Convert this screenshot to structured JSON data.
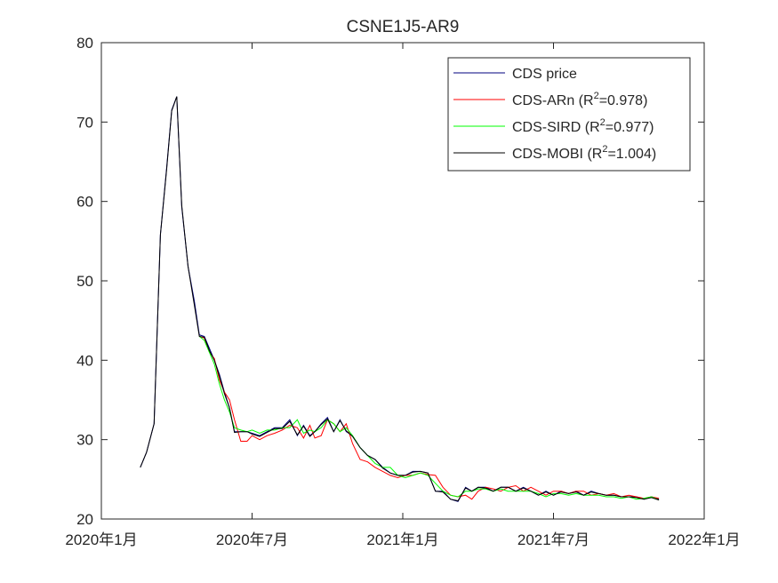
{
  "chart_data": {
    "type": "line",
    "title": "CSNE1J5-AR9",
    "xlabel": "",
    "ylabel": "",
    "ylim": [
      20,
      80
    ],
    "yticks": [
      20,
      30,
      40,
      50,
      60,
      70,
      80
    ],
    "xlim": [
      0,
      24
    ],
    "xticks": [
      {
        "value": 0,
        "label": "2020年1月"
      },
      {
        "value": 6,
        "label": "2020年7月"
      },
      {
        "value": 12,
        "label": "2021年1月"
      },
      {
        "value": 18,
        "label": "2021年7月"
      },
      {
        "value": 24,
        "label": "2022年1月"
      }
    ],
    "grid": false,
    "legend_position": "top-right",
    "series": [
      {
        "name": "CDS price",
        "color": "#00007f",
        "x": [
          1.55,
          1.8,
          2.1,
          2.35,
          2.6,
          2.8,
          3.0,
          3.2,
          3.45,
          3.7,
          3.9,
          4.1,
          4.3,
          4.5,
          4.7,
          4.9,
          5.1,
          5.3,
          5.55,
          5.8,
          6.0,
          6.3,
          6.6,
          6.9,
          7.2,
          7.5,
          7.8,
          8.05,
          8.3,
          8.5,
          8.75,
          9.0,
          9.25,
          9.5,
          9.75,
          10.0,
          10.3,
          10.6,
          10.9,
          11.2,
          11.5,
          11.8,
          12.1,
          12.4,
          12.7,
          13.0,
          13.3,
          13.6,
          13.9,
          14.2,
          14.5,
          14.75,
          15.0,
          15.3,
          15.6,
          15.9,
          16.2,
          16.5,
          16.8,
          17.1,
          17.4,
          17.7,
          18.0,
          18.3,
          18.6,
          18.9,
          19.2,
          19.5,
          19.8,
          20.1,
          20.4,
          20.7,
          21.0,
          21.3,
          21.6,
          21.9,
          22.2
        ],
        "y": [
          26.5,
          28.4,
          32.0,
          55.8,
          64.2,
          71.5,
          73.2,
          59.3,
          51.8,
          47.5,
          43.2,
          43.0,
          41.5,
          40.0,
          38.2,
          36.0,
          34.0,
          31.0,
          31.0,
          31.0,
          30.8,
          30.5,
          31.0,
          31.5,
          31.5,
          32.5,
          30.5,
          31.8,
          30.5,
          31.0,
          32.0,
          32.8,
          31.0,
          32.5,
          31.0,
          30.5,
          29.0,
          28.0,
          27.5,
          26.5,
          25.8,
          25.5,
          25.5,
          26.0,
          26.0,
          25.8,
          23.5,
          23.5,
          22.5,
          22.2,
          24.0,
          23.5,
          24.0,
          24.0,
          23.5,
          24.0,
          24.0,
          23.5,
          24.0,
          23.5,
          23.0,
          23.5,
          23.0,
          23.5,
          23.2,
          23.5,
          23.0,
          23.5,
          23.2,
          23.0,
          23.0,
          22.8,
          22.8,
          22.8,
          22.5,
          22.8,
          22.5
        ]
      },
      {
        "name": "CDS-ARn   (R²=0.978)",
        "color": "#ff0000",
        "x": [
          3.9,
          4.1,
          4.3,
          4.5,
          4.7,
          4.9,
          5.1,
          5.3,
          5.55,
          5.8,
          6.0,
          6.3,
          6.6,
          6.9,
          7.2,
          7.5,
          7.8,
          8.05,
          8.3,
          8.5,
          8.75,
          9.0,
          9.25,
          9.5,
          9.75,
          10.0,
          10.3,
          10.6,
          10.9,
          11.2,
          11.5,
          11.8,
          12.1,
          12.4,
          12.7,
          13.0,
          13.3,
          13.6,
          13.9,
          14.2,
          14.5,
          14.75,
          15.0,
          15.3,
          15.6,
          15.9,
          16.2,
          16.5,
          16.8,
          17.1,
          17.4,
          17.7,
          18.0,
          18.3,
          18.6,
          18.9,
          19.2,
          19.5,
          19.8,
          20.1,
          20.4,
          20.7,
          21.0,
          21.3,
          21.6,
          21.9,
          22.2
        ],
        "y": [
          43.0,
          42.8,
          41.0,
          40.2,
          37.5,
          36.0,
          35.0,
          32.5,
          29.8,
          29.8,
          30.5,
          30.0,
          30.5,
          30.8,
          31.2,
          31.8,
          31.5,
          30.2,
          31.8,
          30.2,
          30.5,
          32.5,
          32.0,
          31.0,
          32.0,
          29.5,
          27.5,
          27.2,
          26.5,
          26.0,
          25.5,
          25.2,
          25.5,
          25.5,
          25.8,
          25.6,
          25.5,
          24.0,
          23.0,
          22.8,
          23.0,
          22.5,
          23.5,
          24.0,
          23.8,
          23.5,
          24.0,
          24.2,
          23.5,
          24.0,
          23.5,
          23.0,
          23.5,
          23.5,
          23.2,
          23.5,
          23.5,
          23.0,
          23.2,
          23.0,
          23.2,
          22.8,
          23.0,
          22.8,
          22.6,
          22.8,
          22.6
        ]
      },
      {
        "name": "CDS-SIRD (R²=0.977)",
        "color": "#00ff00",
        "x": [
          3.9,
          4.1,
          4.3,
          4.5,
          4.7,
          4.9,
          5.1,
          5.3,
          5.55,
          5.8,
          6.0,
          6.3,
          6.6,
          6.9,
          7.2,
          7.5,
          7.8,
          8.05,
          8.3,
          8.5,
          8.75,
          9.0,
          9.25,
          9.5,
          9.75,
          10.0,
          10.3,
          10.6,
          10.9,
          11.2,
          11.5,
          11.8,
          12.1,
          12.4,
          12.7,
          13.0,
          13.3,
          13.6,
          13.9,
          14.2,
          14.5,
          14.75,
          15.0,
          15.3,
          15.6,
          15.9,
          16.2,
          16.5,
          16.8,
          17.1,
          17.4,
          17.7,
          18.0,
          18.3,
          18.6,
          18.9,
          19.2,
          19.5,
          19.8,
          20.1,
          20.4,
          20.7,
          21.0,
          21.3,
          21.6,
          21.9,
          22.2
        ],
        "y": [
          43.0,
          42.5,
          41.0,
          39.5,
          37.0,
          35.0,
          33.5,
          31.5,
          31.2,
          31.0,
          31.2,
          30.8,
          31.2,
          31.2,
          31.5,
          31.5,
          32.5,
          30.8,
          31.2,
          31.0,
          31.5,
          32.5,
          32.0,
          31.0,
          31.5,
          30.5,
          29.0,
          28.0,
          27.0,
          26.5,
          26.5,
          25.5,
          25.2,
          25.5,
          25.8,
          25.5,
          24.5,
          23.5,
          23.0,
          22.8,
          23.5,
          23.5,
          23.8,
          23.8,
          23.5,
          23.8,
          23.5,
          23.5,
          23.5,
          23.5,
          23.2,
          22.8,
          23.2,
          23.2,
          23.0,
          23.2,
          23.0,
          23.0,
          23.0,
          22.8,
          22.8,
          22.6,
          22.8,
          22.5,
          22.6,
          22.8,
          22.4
        ]
      },
      {
        "name": "CDS-MOBI (R²=1.004)",
        "color": "#000000",
        "x": [
          1.55,
          1.8,
          2.1,
          2.35,
          2.6,
          2.8,
          3.0,
          3.2,
          3.45,
          3.7,
          3.9,
          4.1,
          4.3,
          4.5,
          4.7,
          4.9,
          5.1,
          5.3,
          5.55,
          5.8,
          6.0,
          6.3,
          6.6,
          6.9,
          7.2,
          7.5,
          7.8,
          8.05,
          8.3,
          8.5,
          8.75,
          9.0,
          9.25,
          9.5,
          9.75,
          10.0,
          10.3,
          10.6,
          10.9,
          11.2,
          11.5,
          11.8,
          12.1,
          12.4,
          12.7,
          13.0,
          13.3,
          13.6,
          13.9,
          14.2,
          14.5,
          14.75,
          15.0,
          15.3,
          15.6,
          15.9,
          16.2,
          16.5,
          16.8,
          17.1,
          17.4,
          17.7,
          18.0,
          18.3,
          18.6,
          18.9,
          19.2,
          19.5,
          19.8,
          20.1,
          20.4,
          20.7,
          21.0,
          21.3,
          21.6,
          21.9,
          22.2
        ],
        "y": [
          26.5,
          28.4,
          32.0,
          55.8,
          64.0,
          71.4,
          73.2,
          59.5,
          51.8,
          47.0,
          43.0,
          42.9,
          41.2,
          40.0,
          38.0,
          35.8,
          34.0,
          30.9,
          31.0,
          31.0,
          30.7,
          30.4,
          30.9,
          31.4,
          31.4,
          32.3,
          30.6,
          31.7,
          30.4,
          31.0,
          31.9,
          32.6,
          31.0,
          32.4,
          31.1,
          30.4,
          29.0,
          28.0,
          27.5,
          26.4,
          25.8,
          25.5,
          25.5,
          25.9,
          26.0,
          25.8,
          23.5,
          23.4,
          22.5,
          22.3,
          23.9,
          23.5,
          24.0,
          23.9,
          23.5,
          24.0,
          24.0,
          23.5,
          23.9,
          23.5,
          23.0,
          23.4,
          23.0,
          23.4,
          23.2,
          23.4,
          23.0,
          23.4,
          23.2,
          23.0,
          23.0,
          22.8,
          22.8,
          22.7,
          22.5,
          22.7,
          22.4
        ]
      }
    ]
  }
}
